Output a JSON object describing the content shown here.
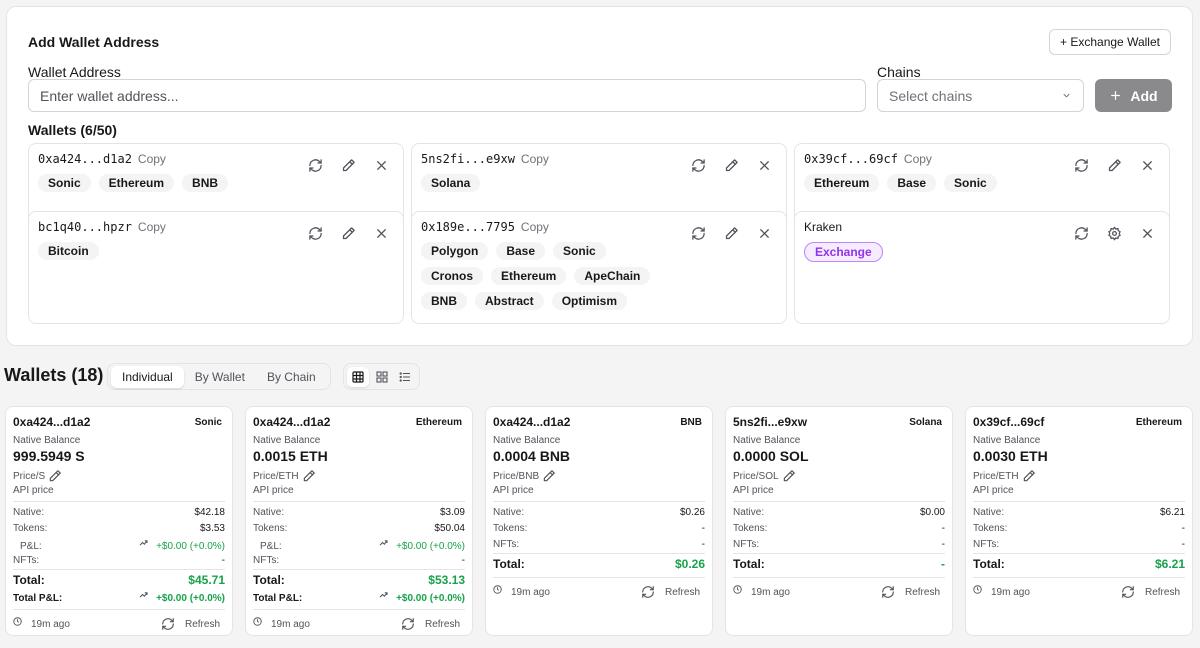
{
  "add_panel": {
    "title": "Add Wallet Address",
    "exchange_button": "+ Exchange Wallet",
    "address_label": "Wallet Address",
    "address_placeholder": "Enter wallet address...",
    "chains_label": "Chains",
    "chains_placeholder": "Select chains",
    "add_button": "Add",
    "wallets_count": "Wallets (6/50)",
    "copy_label": "Copy",
    "accent": "#8a8a8d"
  },
  "wallet_cards": [
    {
      "address": "0xa424...d1a2",
      "tags": [
        "Sonic",
        "Ethereum",
        "BNB"
      ]
    },
    {
      "address": "5ns2fi...e9xw",
      "tags": [
        "Solana"
      ]
    },
    {
      "address": "0x39cf...69cf",
      "tags": [
        "Ethereum",
        "Base",
        "Sonic"
      ]
    },
    {
      "address": "bc1q40...hpzr",
      "tags": [
        "Bitcoin"
      ]
    },
    {
      "address": "0x189e...7795",
      "tags": [
        "Polygon",
        "Base",
        "Sonic",
        "Cronos",
        "Ethereum",
        "ApeChain",
        "BNB",
        "Abstract",
        "Optimism"
      ]
    },
    {
      "name": "Kraken",
      "tags": [
        "Exchange"
      ],
      "exchange": true
    }
  ],
  "section": {
    "title": "Wallets (18)",
    "view_tabs": [
      "Individual",
      "By Wallet",
      "By Chain"
    ],
    "active_tab": "Individual",
    "layout_icons": [
      "table-icon",
      "grid-icon",
      "list-icon"
    ]
  },
  "labels": {
    "native_balance": "Native Balance",
    "api_price": "API price",
    "native": "Native:",
    "tokens": "Tokens:",
    "pnl": "P&L:",
    "nfts": "NFTs:",
    "total": "Total:",
    "total_pnl": "Total P&L:",
    "refresh": "Refresh"
  },
  "balance_cards": [
    {
      "address": "0xa424...d1a2",
      "chain": "Sonic",
      "balance": "999.5949 S",
      "price_label": "Price/S",
      "native": "$42.18",
      "tokens": "$3.53",
      "pnl": "+$0.00 (+0.0%)",
      "nfts": "-",
      "total": "$45.71",
      "total_pnl": "+$0.00 (+0.0%)",
      "ago": "19m ago"
    },
    {
      "address": "0xa424...d1a2",
      "chain": "Ethereum",
      "balance": "0.0015 ETH",
      "price_label": "Price/ETH",
      "native": "$3.09",
      "tokens": "$50.04",
      "pnl": "+$0.00 (+0.0%)",
      "nfts": "-",
      "total": "$53.13",
      "total_pnl": "+$0.00 (+0.0%)",
      "ago": "19m ago"
    },
    {
      "address": "0xa424...d1a2",
      "chain": "BNB",
      "balance": "0.0004 BNB",
      "price_label": "Price/BNB",
      "native": "$0.26",
      "tokens": "-",
      "nfts": "-",
      "total": "$0.26",
      "ago": "19m ago"
    },
    {
      "address": "5ns2fi...e9xw",
      "chain": "Solana",
      "balance": "0.0000 SOL",
      "price_label": "Price/SOL",
      "native": "$0.00",
      "tokens": "-",
      "nfts": "-",
      "total": "-",
      "ago": "19m ago"
    },
    {
      "address": "0x39cf...69cf",
      "chain": "Ethereum",
      "balance": "0.0030 ETH",
      "price_label": "Price/ETH",
      "native": "$6.21",
      "tokens": "-",
      "nfts": "-",
      "total": "$6.21",
      "ago": "19m ago"
    }
  ]
}
